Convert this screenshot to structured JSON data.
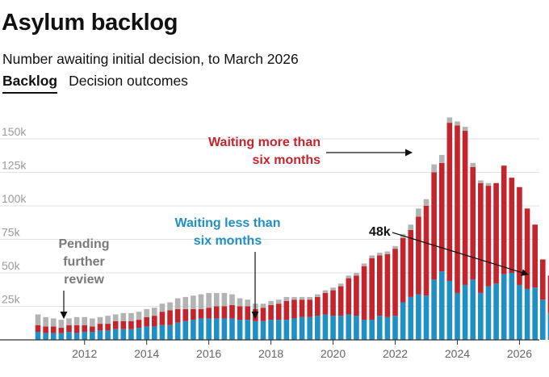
{
  "header": {
    "title": "Asylum backlog",
    "subtitle": "Number awaiting initial decision, to March 2026"
  },
  "tabs": [
    {
      "label": "Backlog",
      "active": true
    },
    {
      "label": "Decision outcomes",
      "active": false
    }
  ],
  "annotations": {
    "more_line1": "Waiting more than",
    "more_line2": "six months",
    "less_line1": "Waiting less than",
    "less_line2": "six months",
    "pending_line1": "Pending",
    "pending_line2": "further",
    "pending_line3": "review",
    "latest": "48k"
  },
  "colors": {
    "less": "#1f8fc4",
    "more": "#c4242b",
    "pending": "#b3b3b3",
    "grid": "#e2e2e2",
    "axis": "#333333"
  },
  "chart_data": {
    "type": "bar",
    "stacked": true,
    "title": "Asylum backlog",
    "subtitle": "Number awaiting initial decision, to March 2026",
    "x_start": 2010.5,
    "x_step": 0.25,
    "x_ticks": [
      2012,
      2014,
      2016,
      2018,
      2020,
      2022,
      2024,
      2026
    ],
    "y_ticks": [
      {
        "value": 25000,
        "label": "25k"
      },
      {
        "value": 50000,
        "label": "50k"
      },
      {
        "value": 75000,
        "label": "75k"
      },
      {
        "value": 100000,
        "label": "100k"
      },
      {
        "value": 125000,
        "label": "125k"
      },
      {
        "value": 150000,
        "label": "150k"
      }
    ],
    "ylim": [
      0,
      172000
    ],
    "series": [
      {
        "name": "Waiting less than six months",
        "values": [
          6000,
          5000,
          5000,
          5000,
          6000,
          5000,
          6000,
          6000,
          7000,
          7000,
          8000,
          8000,
          8000,
          9000,
          10000,
          10000,
          11000,
          11000,
          13000,
          14000,
          15000,
          16000,
          16000,
          16000,
          16000,
          16000,
          15000,
          15000,
          14000,
          14000,
          15000,
          15000,
          15000,
          16000,
          17000,
          17000,
          18000,
          19000,
          18000,
          18000,
          19000,
          18000,
          15000,
          15000,
          18000,
          17000,
          18000,
          28000,
          32000,
          34000,
          33000,
          45000,
          51000,
          44000,
          35000,
          41000,
          45000,
          35000,
          40000,
          42000,
          49000,
          50000,
          41000,
          38000,
          39000,
          30000,
          20000
        ]
      },
      {
        "name": "Waiting more than six months",
        "values": [
          5000,
          5000,
          5000,
          4000,
          5000,
          6000,
          5000,
          4000,
          5000,
          5000,
          6000,
          6000,
          6000,
          6000,
          7000,
          8000,
          10000,
          11000,
          10000,
          9000,
          8000,
          7000,
          8000,
          9000,
          9000,
          10000,
          10000,
          10000,
          9000,
          10000,
          11000,
          12000,
          14000,
          14000,
          13000,
          13000,
          14000,
          16000,
          19000,
          22000,
          27000,
          30000,
          40000,
          46000,
          45000,
          47000,
          50000,
          48000,
          50000,
          58000,
          67000,
          80000,
          81000,
          118000,
          125000,
          115000,
          84000,
          82000,
          75000,
          75000,
          81000,
          71000,
          73000,
          60000,
          47000,
          30000,
          28000
        ]
      },
      {
        "name": "Pending further review",
        "values": [
          8000,
          7000,
          6000,
          6000,
          5000,
          6000,
          6000,
          6000,
          5000,
          6000,
          5000,
          6000,
          6000,
          6000,
          6000,
          6000,
          6000,
          6000,
          8000,
          9000,
          10000,
          11000,
          11000,
          10000,
          10000,
          8000,
          6000,
          5000,
          4000,
          3000,
          3000,
          3000,
          3000,
          2000,
          2000,
          2000,
          2000,
          2000,
          2000,
          2000,
          2000,
          2000,
          2000,
          2000,
          2000,
          2000,
          2000,
          3000,
          4000,
          6000,
          5000,
          6000,
          6000,
          4000,
          3000,
          3000,
          3000,
          2000,
          2000,
          0,
          0,
          0,
          0,
          0,
          0,
          0,
          0
        ]
      }
    ]
  }
}
